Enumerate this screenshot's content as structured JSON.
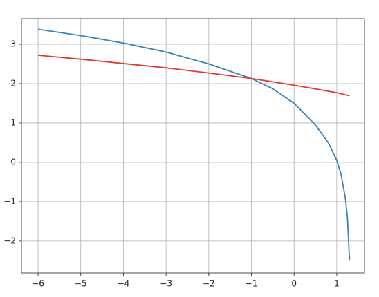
{
  "chart_data": {
    "type": "line",
    "series": [
      {
        "color": "#3a84b9",
        "x": [
          -6,
          -5,
          -4,
          -3,
          -2,
          -1,
          -0.5,
          0,
          0.5,
          0.8,
          1,
          1.1,
          1.2,
          1.25,
          1.3
        ],
        "values": [
          3.38,
          3.22,
          3.03,
          2.8,
          2.5,
          2.13,
          1.87,
          1.5,
          0.95,
          0.5,
          0.05,
          -0.3,
          -0.9,
          -1.4,
          -2.5
        ]
      },
      {
        "color": "#e03a32",
        "x": [
          -6,
          -5,
          -4,
          -3,
          -2,
          -1,
          0,
          1,
          1.3
        ],
        "values": [
          2.72,
          2.62,
          2.51,
          2.4,
          2.27,
          2.13,
          1.96,
          1.77,
          1.69
        ]
      }
    ],
    "xlim": [
      -6.39,
      1.65
    ],
    "ylim": [
      -2.81,
      3.65
    ],
    "xticks": [
      {
        "value": -6,
        "label": "−6"
      },
      {
        "value": -5,
        "label": "−5"
      },
      {
        "value": -4,
        "label": "−4"
      },
      {
        "value": -3,
        "label": "−3"
      },
      {
        "value": -2,
        "label": "−2"
      },
      {
        "value": -1,
        "label": "−1"
      },
      0,
      1
    ],
    "yticks": [
      {
        "value": -2,
        "label": "−2"
      },
      {
        "value": -1,
        "label": "−1"
      },
      0,
      1,
      2,
      3
    ],
    "grid": true
  }
}
